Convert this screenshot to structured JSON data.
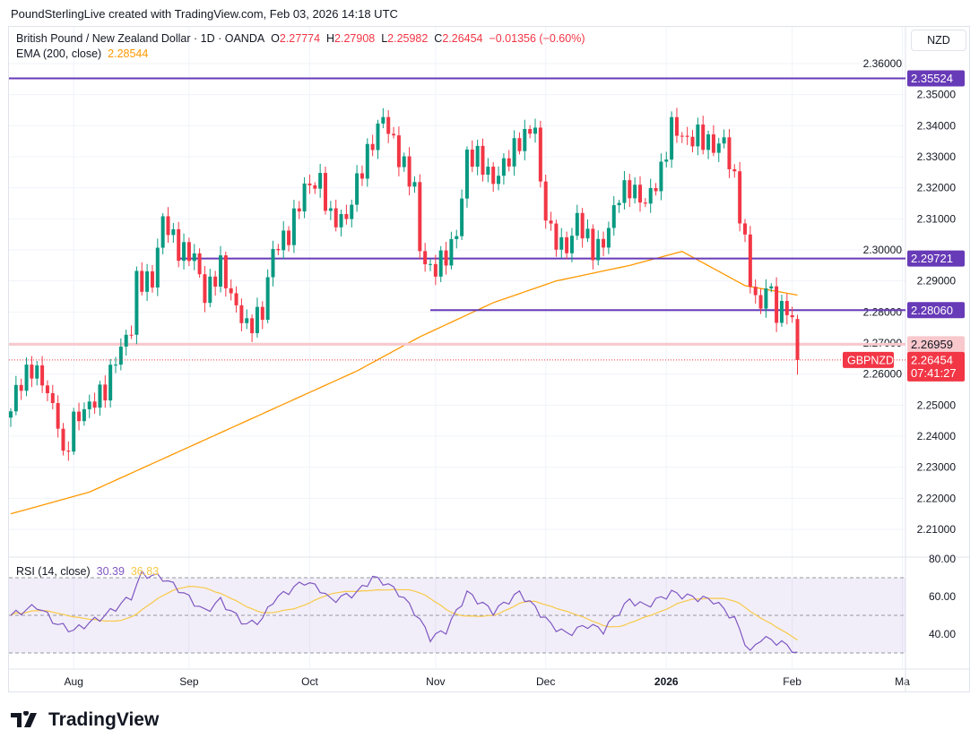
{
  "credit": "PoundSterlingLive created with TradingView.com, Feb 03, 2026 14:18 UTC",
  "legend": {
    "symbol": "British Pound / New Zealand Dollar · 1D · OANDA",
    "o_label": "O",
    "o": "2.27774",
    "h_label": "H",
    "h": "2.27908",
    "l_label": "L",
    "l": "2.25982",
    "c_label": "C",
    "c": "2.26454",
    "change": "−0.01356 (−0.60%)",
    "ema_label": "EMA (200, close)",
    "ema": "2.28544"
  },
  "currency": "NZD",
  "rsi_legend": {
    "label": "RSI (14, close)",
    "rsi": "30.39",
    "signal": "36.83"
  },
  "logo": "TradingView",
  "chart_data": {
    "type": "candlestick",
    "price_axis": {
      "ticks": [
        "2.36000",
        "2.35000",
        "2.34000",
        "2.33000",
        "2.32000",
        "2.31000",
        "2.30000",
        "2.29000",
        "2.28000",
        "2.27000",
        "2.26000",
        "2.25000",
        "2.24000",
        "2.23000",
        "2.22000",
        "2.21000"
      ],
      "range": [
        2.2055,
        2.3635
      ]
    },
    "time_axis": {
      "ticks": [
        {
          "label": "Aug",
          "idx": 12
        },
        {
          "label": "Sep",
          "idx": 34
        },
        {
          "label": "Oct",
          "idx": 57
        },
        {
          "label": "Nov",
          "idx": 81
        },
        {
          "label": "Dec",
          "idx": 102
        },
        {
          "label": "2026",
          "idx": 125,
          "bold": true
        },
        {
          "label": "Feb",
          "idx": 149
        },
        {
          "label": "Ma",
          "idx": 170
        }
      ],
      "n_visible": 172
    },
    "close_anchors": [
      [
        0,
        2.248
      ],
      [
        1,
        2.255
      ],
      [
        4,
        2.262
      ],
      [
        6,
        2.258
      ],
      [
        9,
        2.245
      ],
      [
        10,
        2.232
      ],
      [
        12,
        2.245
      ],
      [
        15,
        2.25
      ],
      [
        18,
        2.255
      ],
      [
        20,
        2.265
      ],
      [
        23,
        2.275
      ],
      [
        24,
        2.29
      ],
      [
        27,
        2.29
      ],
      [
        29,
        2.31
      ],
      [
        30,
        2.307
      ],
      [
        32,
        2.3
      ],
      [
        35,
        2.298
      ],
      [
        37,
        2.285
      ],
      [
        40,
        2.295
      ],
      [
        42,
        2.285
      ],
      [
        45,
        2.275
      ],
      [
        48,
        2.28
      ],
      [
        50,
        2.3
      ],
      [
        53,
        2.305
      ],
      [
        56,
        2.32
      ],
      [
        59,
        2.322
      ],
      [
        61,
        2.31
      ],
      [
        64,
        2.31
      ],
      [
        66,
        2.322
      ],
      [
        69,
        2.335
      ],
      [
        71,
        2.343
      ],
      [
        74,
        2.33
      ],
      [
        77,
        2.32
      ],
      [
        78,
        2.3
      ],
      [
        80,
        2.293
      ],
      [
        83,
        2.298
      ],
      [
        85,
        2.305
      ],
      [
        87,
        2.33
      ],
      [
        89,
        2.33
      ],
      [
        92,
        2.322
      ],
      [
        95,
        2.33
      ],
      [
        97,
        2.335
      ],
      [
        100,
        2.34
      ],
      [
        101,
        2.32
      ],
      [
        103,
        2.305
      ],
      [
        106,
        2.3
      ],
      [
        108,
        2.31
      ],
      [
        111,
        2.3
      ],
      [
        113,
        2.302
      ],
      [
        116,
        2.318
      ],
      [
        118,
        2.32
      ],
      [
        121,
        2.315
      ],
      [
        124,
        2.325
      ],
      [
        126,
        2.34
      ],
      [
        129,
        2.335
      ],
      [
        131,
        2.337
      ],
      [
        134,
        2.333
      ],
      [
        136,
        2.335
      ],
      [
        138,
        2.322
      ],
      [
        140,
        2.302
      ],
      [
        141,
        2.29
      ],
      [
        143,
        2.28
      ],
      [
        144,
        2.29
      ],
      [
        146,
        2.28
      ],
      [
        148,
        2.281
      ],
      [
        149,
        2.2777
      ],
      [
        150,
        2.26454
      ]
    ],
    "last_candle": {
      "open": 2.27774,
      "high": 2.27908,
      "low": 2.25982,
      "close": 2.26454
    },
    "ema200_anchors": [
      [
        0,
        2.215
      ],
      [
        15,
        2.222
      ],
      [
        32,
        2.235
      ],
      [
        49,
        2.248
      ],
      [
        66,
        2.261
      ],
      [
        78,
        2.272
      ],
      [
        92,
        2.283
      ],
      [
        104,
        2.29
      ],
      [
        118,
        2.295
      ],
      [
        128,
        2.2995
      ],
      [
        140,
        2.2885
      ],
      [
        150,
        2.28544
      ]
    ],
    "levels": [
      {
        "price": 2.35524,
        "label": "2.35524",
        "color": "#673ab7",
        "from_idx": 0
      },
      {
        "price": 2.29721,
        "label": "2.29721",
        "color": "#673ab7",
        "from_idx": 32
      },
      {
        "price": 2.2806,
        "label": "2.28060",
        "color": "#673ab7",
        "from_idx": 80
      },
      {
        "price": 2.26959,
        "label": "2.26959",
        "color": "#f8c8cc",
        "from_idx": 0
      }
    ],
    "last_price": {
      "price": 2.26454,
      "label": "2.26454",
      "countdown": "07:41:27",
      "symbol": "GBPNZD",
      "color": "#f23645"
    },
    "rsi": {
      "ticks": [
        "80.00",
        "60.00",
        "40.00"
      ],
      "range": [
        25,
        81
      ],
      "bands": [
        30,
        50,
        70
      ],
      "anchors": [
        [
          0,
          50
        ],
        [
          5,
          55
        ],
        [
          9,
          45
        ],
        [
          12,
          42
        ],
        [
          18,
          50
        ],
        [
          23,
          60
        ],
        [
          25,
          72
        ],
        [
          29,
          70
        ],
        [
          32,
          64
        ],
        [
          37,
          52
        ],
        [
          40,
          58
        ],
        [
          42,
          52
        ],
        [
          45,
          45
        ],
        [
          48,
          48
        ],
        [
          50,
          58
        ],
        [
          56,
          68
        ],
        [
          59,
          64
        ],
        [
          61,
          58
        ],
        [
          66,
          62
        ],
        [
          69,
          70
        ],
        [
          71,
          68
        ],
        [
          74,
          62
        ],
        [
          77,
          52
        ],
        [
          80,
          38
        ],
        [
          83,
          42
        ],
        [
          87,
          62
        ],
        [
          89,
          58
        ],
        [
          92,
          52
        ],
        [
          97,
          62
        ],
        [
          100,
          54
        ],
        [
          103,
          45
        ],
        [
          106,
          40
        ],
        [
          110,
          45
        ],
        [
          113,
          42
        ],
        [
          116,
          52
        ],
        [
          118,
          58
        ],
        [
          121,
          55
        ],
        [
          126,
          62
        ],
        [
          129,
          60
        ],
        [
          134,
          58
        ],
        [
          138,
          48
        ],
        [
          140,
          36
        ],
        [
          141,
          30
        ],
        [
          143,
          38
        ],
        [
          146,
          36
        ],
        [
          148,
          34
        ],
        [
          150,
          30.39
        ]
      ]
    },
    "colors": {
      "up": "#089981",
      "down": "#f23645",
      "ema": "#ff9800",
      "rsi": "#7e57c2",
      "rsi_signal": "#f7c948"
    }
  }
}
